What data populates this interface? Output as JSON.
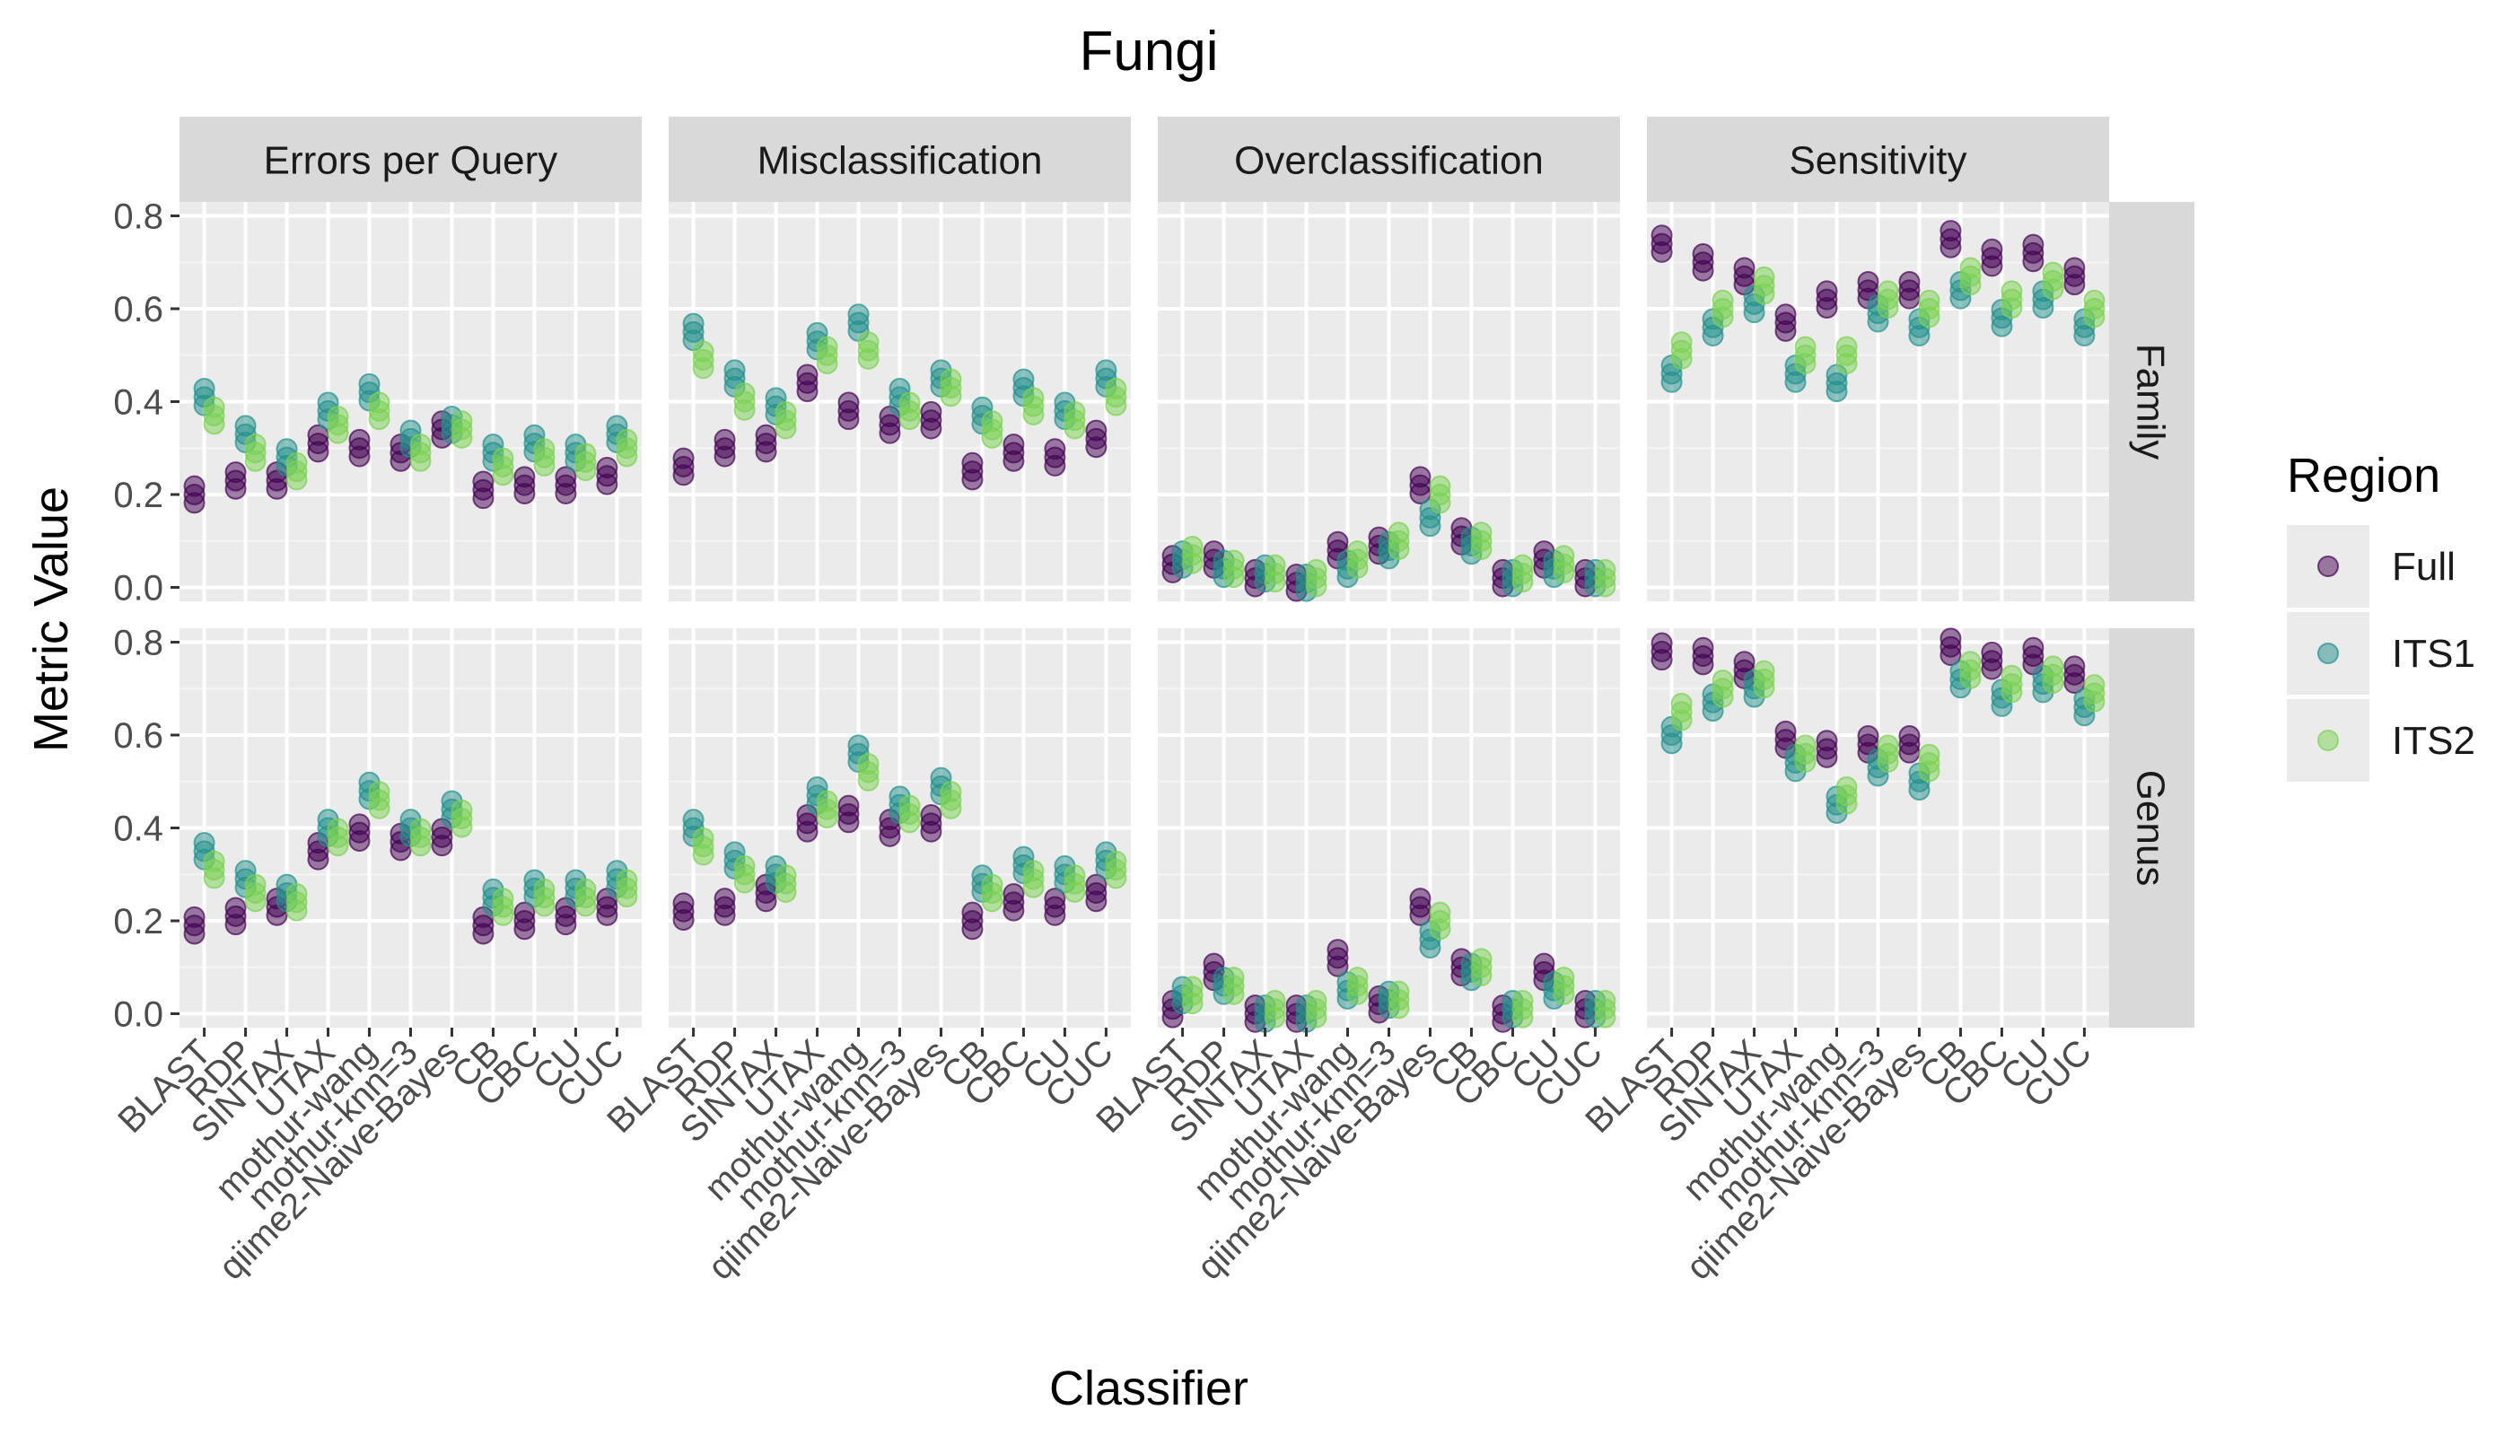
{
  "chart_data": {
    "type": "scatter",
    "title": "Fungi",
    "xlabel": "Classifier",
    "ylabel": "Metric Value",
    "ylim": [
      -0.03,
      0.83
    ],
    "yticks": [
      "0.0",
      "0.2",
      "0.4",
      "0.6",
      "0.8"
    ],
    "grid": true,
    "legend": {
      "title": "Region",
      "position": "right",
      "entries": [
        "Full",
        "ITS1",
        "ITS2"
      ]
    },
    "colors": {
      "Full": "#440154",
      "ITS1": "#21908c",
      "ITS2": "#7ad151"
    },
    "classifiers": [
      "BLAST",
      "RDP",
      "SINTAX",
      "UTAX",
      "mothur-wang",
      "mothur-knn=3",
      "qiime2-Naive-Bayes",
      "CB",
      "CBC",
      "CU",
      "CUC"
    ],
    "metrics": [
      "Errors per Query",
      "Misclassification",
      "Overclassification",
      "Sensitivity"
    ],
    "ranks": [
      "Family",
      "Genus"
    ],
    "data": {
      "Family": {
        "Errors per Query": {
          "Full": [
            0.2,
            0.23,
            0.23,
            0.31,
            0.3,
            0.29,
            0.34,
            0.21,
            0.22,
            0.22,
            0.24
          ],
          "ITS1": [
            0.41,
            0.33,
            0.28,
            0.38,
            0.42,
            0.32,
            0.35,
            0.29,
            0.31,
            0.29,
            0.33
          ],
          "ITS2": [
            0.37,
            0.29,
            0.25,
            0.35,
            0.38,
            0.29,
            0.34,
            0.26,
            0.28,
            0.27,
            0.3
          ]
        },
        "Misclassification": {
          "Full": [
            0.26,
            0.3,
            0.31,
            0.44,
            0.38,
            0.35,
            0.36,
            0.25,
            0.29,
            0.28,
            0.32
          ],
          "ITS1": [
            0.55,
            0.45,
            0.39,
            0.53,
            0.57,
            0.41,
            0.45,
            0.37,
            0.43,
            0.38,
            0.45
          ],
          "ITS2": [
            0.49,
            0.4,
            0.36,
            0.5,
            0.51,
            0.38,
            0.43,
            0.34,
            0.39,
            0.36,
            0.41
          ]
        },
        "Overclassification": {
          "Full": [
            0.05,
            0.06,
            0.02,
            0.01,
            0.08,
            0.09,
            0.22,
            0.11,
            0.02,
            0.06,
            0.02
          ],
          "ITS1": [
            0.06,
            0.04,
            0.03,
            0.01,
            0.04,
            0.08,
            0.15,
            0.09,
            0.02,
            0.04,
            0.02
          ],
          "ITS2": [
            0.07,
            0.04,
            0.03,
            0.02,
            0.06,
            0.1,
            0.2,
            0.1,
            0.03,
            0.05,
            0.02
          ]
        },
        "Sensitivity": {
          "Full": [
            0.74,
            0.7,
            0.67,
            0.57,
            0.62,
            0.64,
            0.64,
            0.75,
            0.71,
            0.72,
            0.67
          ],
          "ITS1": [
            0.46,
            0.56,
            0.61,
            0.46,
            0.44,
            0.59,
            0.56,
            0.64,
            0.58,
            0.62,
            0.56
          ],
          "ITS2": [
            0.51,
            0.6,
            0.65,
            0.5,
            0.5,
            0.62,
            0.6,
            0.67,
            0.62,
            0.66,
            0.6
          ]
        }
      },
      "Genus": {
        "Errors per Query": {
          "Full": [
            0.19,
            0.21,
            0.23,
            0.35,
            0.39,
            0.37,
            0.38,
            0.19,
            0.2,
            0.21,
            0.23
          ],
          "ITS1": [
            0.35,
            0.29,
            0.26,
            0.4,
            0.48,
            0.4,
            0.44,
            0.25,
            0.27,
            0.27,
            0.29
          ],
          "ITS2": [
            0.31,
            0.26,
            0.24,
            0.38,
            0.46,
            0.38,
            0.42,
            0.23,
            0.25,
            0.25,
            0.27
          ]
        },
        "Misclassification": {
          "Full": [
            0.22,
            0.23,
            0.26,
            0.41,
            0.43,
            0.4,
            0.41,
            0.2,
            0.24,
            0.23,
            0.26
          ],
          "ITS1": [
            0.4,
            0.33,
            0.3,
            0.47,
            0.56,
            0.45,
            0.49,
            0.28,
            0.32,
            0.3,
            0.33
          ],
          "ITS2": [
            0.36,
            0.3,
            0.28,
            0.44,
            0.52,
            0.43,
            0.46,
            0.26,
            0.29,
            0.28,
            0.31
          ]
        },
        "Overclassification": {
          "Full": [
            0.01,
            0.09,
            0.0,
            0.0,
            0.12,
            0.02,
            0.23,
            0.1,
            0.0,
            0.09,
            0.01
          ],
          "ITS1": [
            0.04,
            0.06,
            0.0,
            0.0,
            0.05,
            0.03,
            0.16,
            0.09,
            0.01,
            0.05,
            0.01
          ],
          "ITS2": [
            0.04,
            0.06,
            0.01,
            0.01,
            0.06,
            0.03,
            0.2,
            0.1,
            0.01,
            0.06,
            0.01
          ]
        },
        "Sensitivity": {
          "Full": [
            0.78,
            0.77,
            0.74,
            0.59,
            0.57,
            0.58,
            0.58,
            0.79,
            0.76,
            0.77,
            0.73
          ],
          "ITS1": [
            0.6,
            0.67,
            0.7,
            0.54,
            0.45,
            0.53,
            0.5,
            0.72,
            0.68,
            0.71,
            0.66
          ],
          "ITS2": [
            0.65,
            0.7,
            0.72,
            0.56,
            0.47,
            0.56,
            0.54,
            0.74,
            0.71,
            0.73,
            0.69
          ]
        }
      }
    }
  }
}
